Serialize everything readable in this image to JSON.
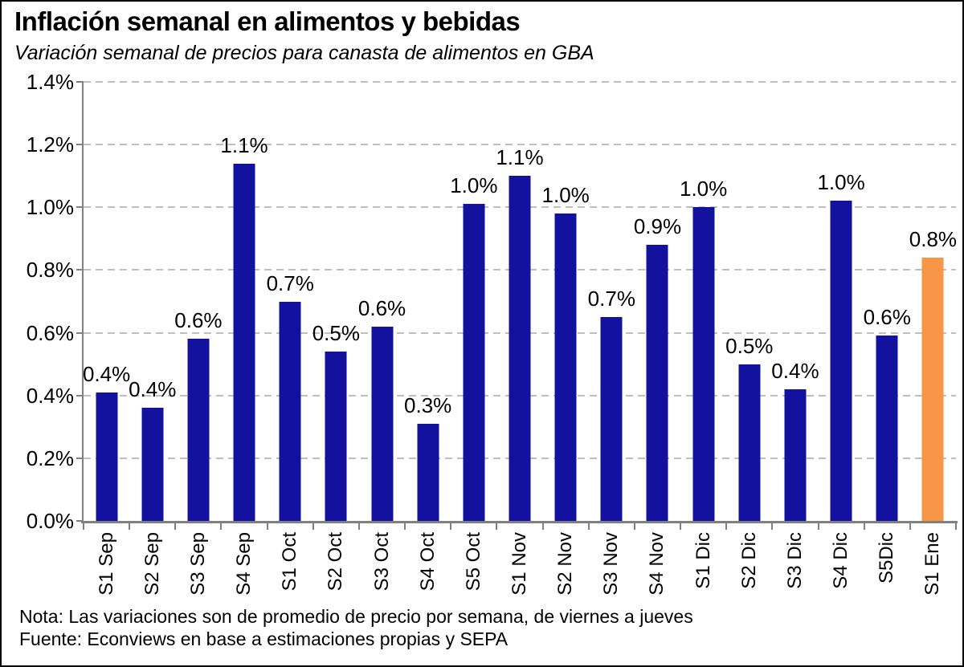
{
  "header": {
    "title": "Inflación semanal en alimentos y bebidas",
    "subtitle": "Variación semanal de precios para canasta de alimentos en GBA"
  },
  "chart_data": {
    "type": "bar",
    "title": "Inflación semanal en alimentos y bebidas",
    "subtitle": "Variación semanal de precios para canasta de alimentos en GBA",
    "categories": [
      "S1 Sep",
      "S2 Sep",
      "S3 Sep",
      "S4 Sep",
      "S1 Oct",
      "S2 Oct",
      "S3 Oct",
      "S4 Oct",
      "S5 Oct",
      "S1 Nov",
      "S2 Nov",
      "S3 Nov",
      "S4 Nov",
      "S1 Dic",
      "S2 Dic",
      "S3 Dic",
      "S4 Dic",
      "S5Dic",
      "S1 Ene"
    ],
    "values": [
      0.41,
      0.36,
      0.58,
      1.14,
      0.7,
      0.54,
      0.62,
      0.31,
      1.01,
      1.1,
      0.98,
      0.65,
      0.88,
      1.0,
      0.5,
      0.42,
      1.02,
      0.59,
      0.84
    ],
    "bar_labels": [
      "0.4%",
      "0.4%",
      "0.6%",
      "1.1%",
      "0.7%",
      "0.5%",
      "0.6%",
      "0.3%",
      "1.0%",
      "1.1%",
      "1.0%",
      "0.7%",
      "0.9%",
      "1.0%",
      "0.5%",
      "0.4%",
      "1.0%",
      "0.6%",
      "0.8%"
    ],
    "xlabel": "",
    "ylabel": "",
    "ylim": [
      0,
      1.4
    ],
    "ytick_values": [
      0,
      0.2,
      0.4,
      0.6,
      0.8,
      1.0,
      1.2,
      1.4
    ],
    "ytick_labels": [
      "0.0%",
      "0.2%",
      "0.4%",
      "0.6%",
      "0.8%",
      "1.0%",
      "1.2%",
      "1.4%"
    ],
    "grid": "horizontal-dashed",
    "legend": "none",
    "bar_color": "#12129E",
    "highlight_color": "#F79646",
    "highlight_index": 18,
    "highlight_category": "S1 Ene",
    "gridline_color": "#BFBFBF",
    "axis_color": "#808080"
  },
  "footer": {
    "note": "Nota: Las variaciones son de promedio de precio por semana, de viernes a jueves",
    "source": "Fuente: Econviews en base a estimaciones propias y SEPA"
  }
}
